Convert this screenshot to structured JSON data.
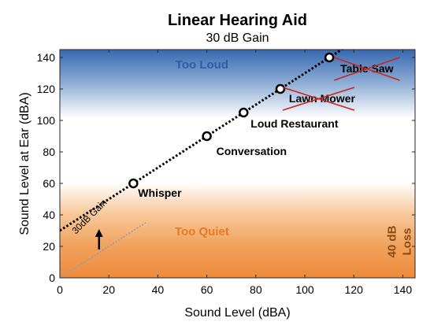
{
  "chart_data": {
    "type": "line",
    "title": "Linear Hearing Aid",
    "subtitle": "30 dB Gain",
    "xlabel": "Sound Level (dBA)",
    "ylabel": "Sound Level at Ear (dBA)",
    "xlim": [
      0,
      145
    ],
    "ylim": [
      0,
      145
    ],
    "xticks": [
      0,
      20,
      40,
      60,
      80,
      100,
      120,
      140
    ],
    "yticks": [
      0,
      20,
      40,
      60,
      80,
      100,
      120,
      140
    ],
    "grid": false,
    "gain_line": {
      "slope": 1,
      "intercept": 30
    },
    "reference_line": {
      "slope": 1,
      "intercept": 0,
      "x_max": 35
    },
    "points": [
      {
        "x": 30,
        "y": 60,
        "label": "Whisper",
        "crossed": false
      },
      {
        "x": 60,
        "y": 90,
        "label": "Conversation",
        "crossed": false
      },
      {
        "x": 75,
        "y": 105,
        "label": "Loud Restaurant",
        "crossed": false
      },
      {
        "x": 90,
        "y": 120,
        "label": "Lawn Mower",
        "crossed": true
      },
      {
        "x": 110,
        "y": 140,
        "label": "Table Saw",
        "crossed": true
      }
    ],
    "regions": {
      "too_loud": {
        "label": "Too Loud",
        "color": "#2e5fa3"
      },
      "too_quiet": {
        "label": "Too Quiet",
        "color": "#e87a22"
      }
    },
    "annotations": {
      "gain_text": "30dB Gain",
      "loss_line1": "40 dB",
      "loss_line2": "Loss",
      "loss_color": "#8a4a10",
      "cross_color": "#c8281e"
    }
  }
}
